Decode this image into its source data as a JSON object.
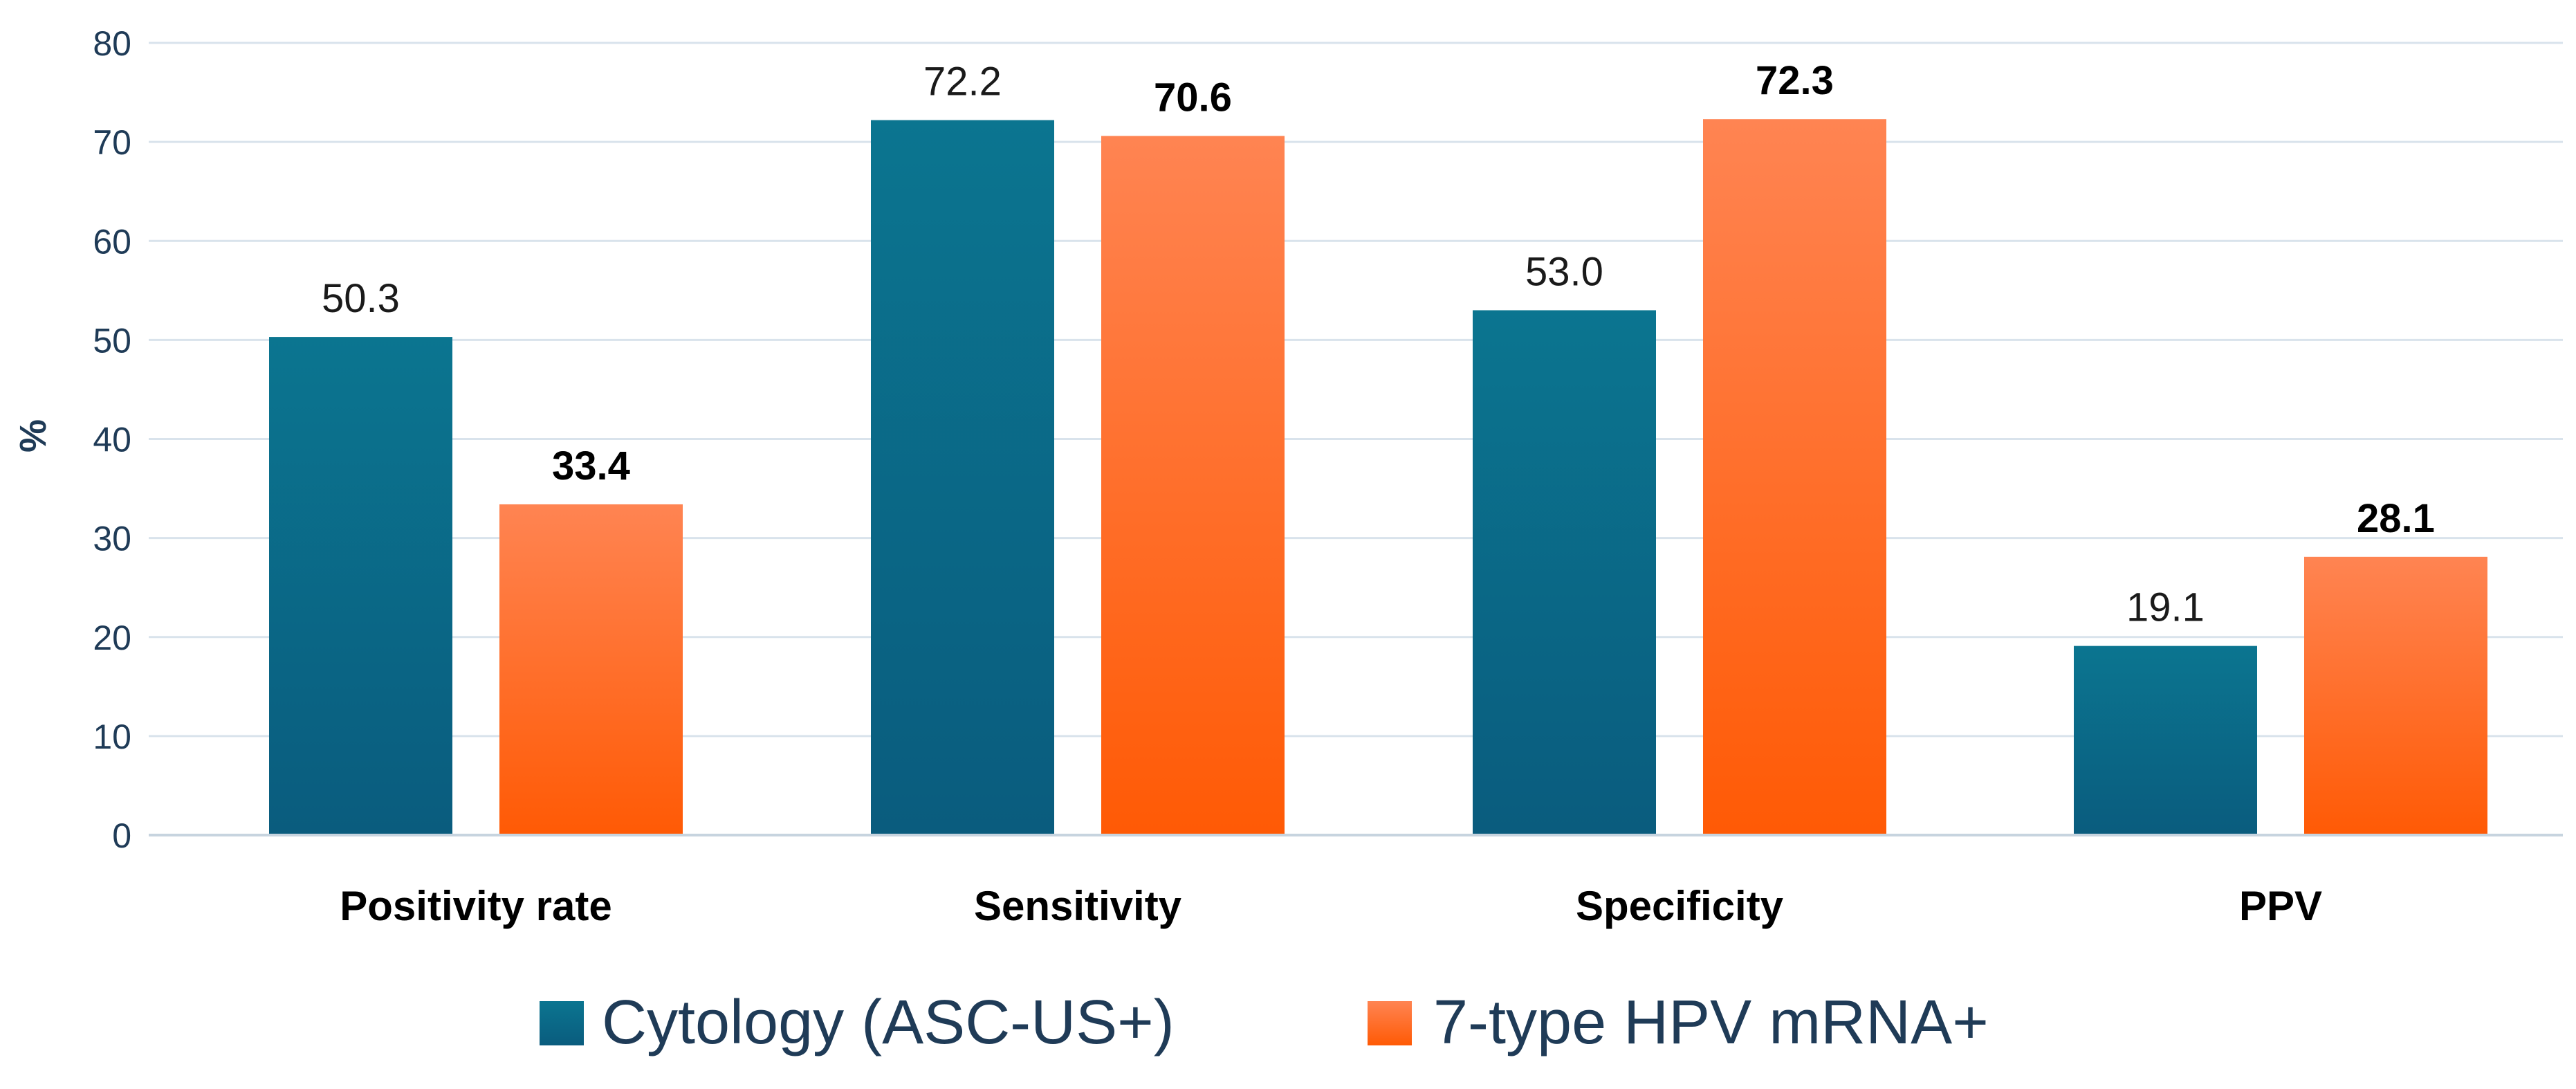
{
  "chart_data": {
    "type": "bar",
    "title": "",
    "xlabel": "",
    "ylabel": "%",
    "ylim": [
      0,
      80
    ],
    "yticks": [
      0,
      10,
      20,
      30,
      40,
      50,
      60,
      70,
      80
    ],
    "grid": true,
    "legend_position": "bottom",
    "categories": [
      "Positivity rate",
      "Sensitivity",
      "Specificity",
      "PPV"
    ],
    "series": [
      {
        "name": "Cytology (ASC-US+)",
        "values": [
          50.3,
          72.2,
          53.0,
          19.1
        ],
        "labels": [
          "50.3",
          "72.2",
          "53.0",
          "19.1"
        ],
        "color": "#0a5c7e",
        "color_top": "#0b7590",
        "label_bold": false
      },
      {
        "name": "7-type HPV mRNA+",
        "values": [
          33.4,
          70.6,
          72.3,
          28.1
        ],
        "labels": [
          "33.4",
          "70.6",
          "72.3",
          "28.1"
        ],
        "color": "#ff5a05",
        "color_top": "#ff8452",
        "label_bold": true
      }
    ]
  }
}
